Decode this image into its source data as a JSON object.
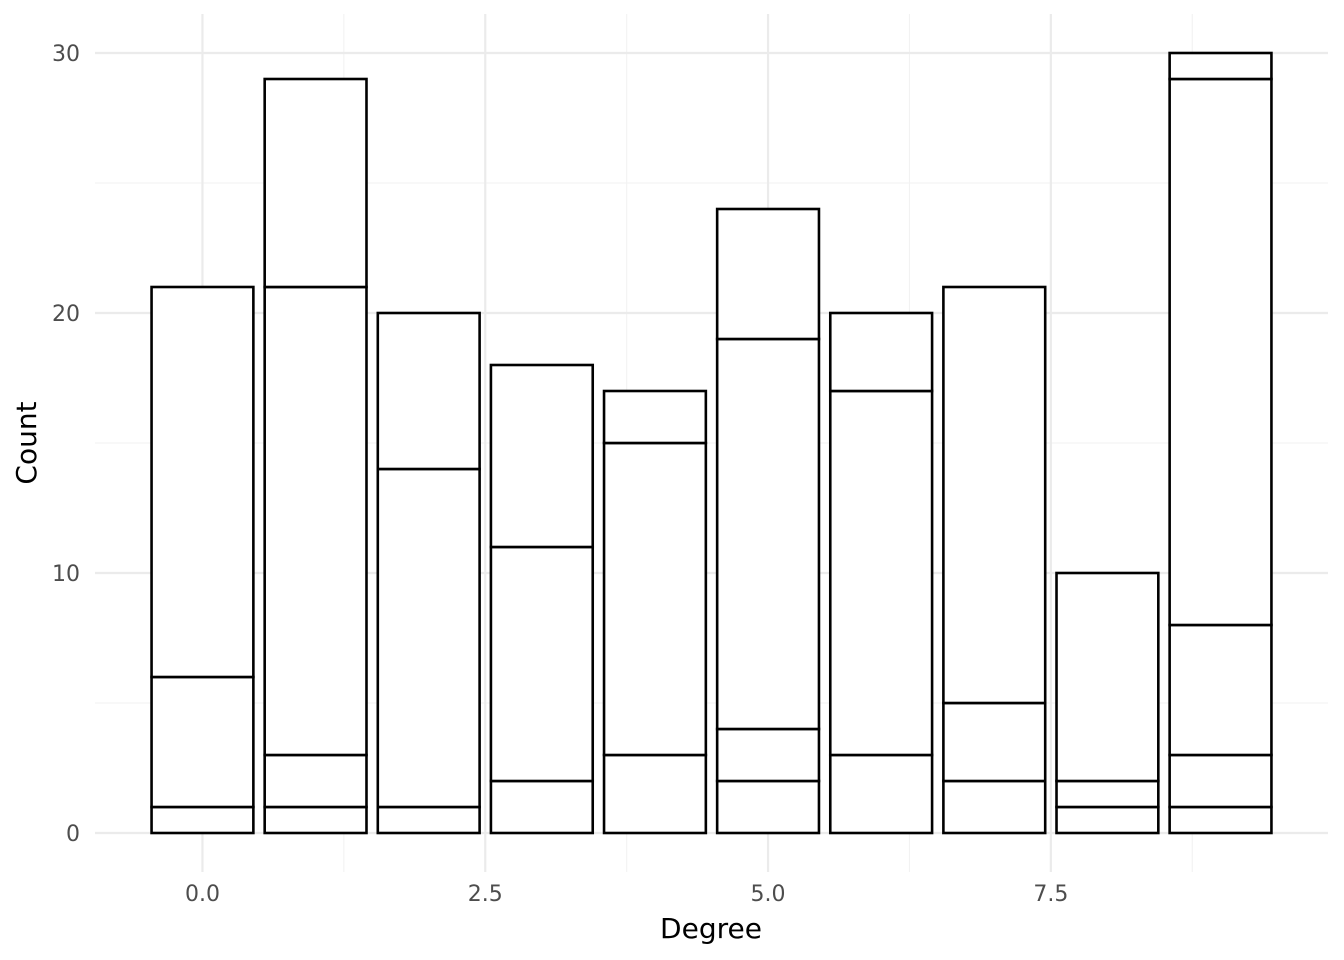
{
  "chart_data": {
    "type": "bar",
    "stacked": true,
    "title": "",
    "xlabel": "Degree",
    "ylabel": "Count",
    "xlim": [
      -0.95,
      9.95
    ],
    "ylim": [
      -1.5,
      31.5
    ],
    "x_ticks": [
      0.0,
      2.5,
      5.0,
      7.5
    ],
    "x_tick_labels": [
      "0.0",
      "2.5",
      "5.0",
      "7.5"
    ],
    "y_ticks": [
      0,
      10,
      20,
      30
    ],
    "y_tick_labels": [
      "0",
      "10",
      "20",
      "30"
    ],
    "grid": true,
    "legend": "none",
    "bar_width": 0.9,
    "bars": [
      {
        "x": 0,
        "boundaries": [
          1,
          6,
          21
        ]
      },
      {
        "x": 1,
        "boundaries": [
          1,
          3,
          21,
          29
        ]
      },
      {
        "x": 2,
        "boundaries": [
          1,
          14,
          20
        ]
      },
      {
        "x": 3,
        "boundaries": [
          2,
          11,
          18
        ]
      },
      {
        "x": 4,
        "boundaries": [
          3,
          15,
          17
        ]
      },
      {
        "x": 5,
        "boundaries": [
          2,
          4,
          19,
          24
        ]
      },
      {
        "x": 6,
        "boundaries": [
          3,
          17,
          20
        ]
      },
      {
        "x": 7,
        "boundaries": [
          2,
          5,
          21
        ]
      },
      {
        "x": 8,
        "boundaries": [
          1,
          2,
          10
        ]
      },
      {
        "x": 9,
        "boundaries": [
          1,
          3,
          8,
          29,
          30
        ]
      }
    ]
  }
}
